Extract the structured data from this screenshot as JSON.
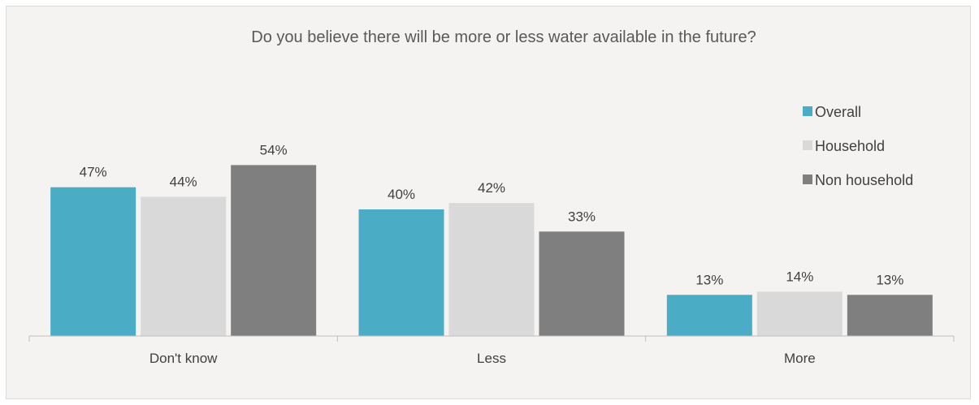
{
  "chart_data": {
    "type": "bar",
    "title": "Do you believe there will be more or less water available in the future?",
    "xlabel": "",
    "ylabel": "",
    "categories": [
      "Don't know",
      "Less",
      "More"
    ],
    "series": [
      {
        "name": "Overall",
        "values": [
          47,
          40,
          13
        ],
        "labels": [
          "47%",
          "40%",
          "13%"
        ],
        "color": "#4bacc6"
      },
      {
        "name": "Household",
        "values": [
          44,
          42,
          14
        ],
        "labels": [
          "44%",
          "42%",
          "14%"
        ],
        "color": "#d9d9d9"
      },
      {
        "name": "Non household",
        "values": [
          54,
          33,
          13
        ],
        "labels": [
          "54%",
          "33%",
          "13%"
        ],
        "color": "#7f7f7f"
      }
    ],
    "ylim": [
      0,
      60
    ],
    "grid": false,
    "legend_position": "top-right",
    "axis_color": "#bfbfbf"
  }
}
